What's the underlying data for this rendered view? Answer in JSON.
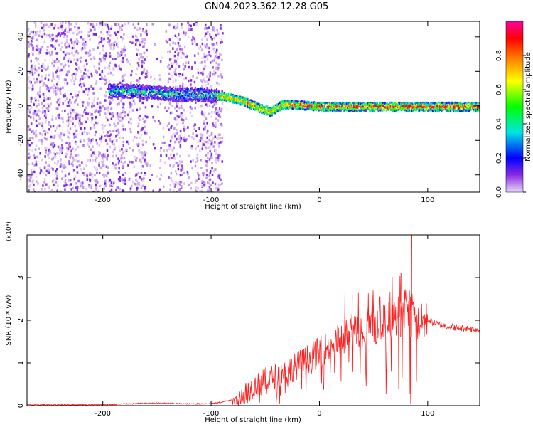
{
  "title": "GN04.2023.362.12.28.G05",
  "chart_data": [
    {
      "type": "heatmap",
      "title": "GN04.2023.362.12.28.G05",
      "xlabel": "Height of straight line (km)",
      "ylabel": "Frequency (Hz)",
      "xlim": [
        -270,
        148
      ],
      "ylim": [
        -50,
        49
      ],
      "xticks": [
        -200,
        -100,
        0,
        100
      ],
      "xtick_labels": [
        "-200",
        "-100",
        "0",
        "100"
      ],
      "yticks": [
        -40,
        -20,
        0,
        20,
        40
      ],
      "ytick_labels": [
        "-40",
        "-20",
        "0",
        "20",
        "40"
      ],
      "colorbar": {
        "label": "Normalized spectral amplitude",
        "range": [
          0,
          1
        ],
        "ticks": [
          0.0,
          0.2,
          0.4,
          0.6,
          0.8
        ],
        "tick_labels": [
          "0.0",
          "0.2",
          "0.4",
          "0.6",
          "0.8"
        ],
        "colormap": [
          "#e6d8f7",
          "#8a2be2",
          "#0000ff",
          "#00e5e5",
          "#00ff00",
          "#ffff00",
          "#ff8000",
          "#ff0000",
          "#ff00a0"
        ]
      },
      "ridge": {
        "x": [
          -190,
          -170,
          -150,
          -130,
          -110,
          -90,
          -70,
          -55,
          -45,
          -35,
          -20,
          0,
          20,
          40,
          60,
          80,
          100,
          120,
          148
        ],
        "y": [
          9,
          9,
          8,
          7,
          7,
          6,
          3,
          -1,
          -3,
          1,
          1,
          0,
          0,
          0,
          0,
          0,
          0,
          0,
          0
        ]
      },
      "noise_region": {
        "x": [
          -270,
          -90
        ],
        "y": [
          -50,
          49
        ]
      }
    },
    {
      "type": "line",
      "xlabel": "Height of straight line (km)",
      "ylabel": "SNR (10 * v/v)",
      "y_multiplier": "(x10⁴)",
      "xlim": [
        -270,
        148
      ],
      "ylim": [
        0,
        4
      ],
      "xticks": [
        -200,
        -100,
        0,
        100
      ],
      "xtick_labels": [
        "-200",
        "-100",
        "0",
        "100"
      ],
      "yticks": [
        0,
        1,
        2,
        3
      ],
      "ytick_labels": [
        "0",
        "1",
        "2",
        "3"
      ],
      "grid": false,
      "color": "#ff2020",
      "series": [
        {
          "x": [
            -270,
            -200,
            -180,
            -150,
            -120,
            -100,
            -90,
            -80,
            -70,
            -60,
            -50,
            -40,
            -30,
            -20,
            -10,
            0,
            10,
            20,
            30,
            40,
            50,
            60,
            70,
            80,
            85,
            90,
            100,
            110,
            120,
            130,
            140,
            148
          ],
          "values": [
            0.02,
            0.02,
            0.04,
            0.06,
            0.04,
            0.05,
            0.08,
            0.15,
            0.3,
            0.45,
            0.6,
            0.7,
            0.8,
            0.95,
            1.1,
            1.25,
            1.4,
            1.55,
            1.7,
            1.8,
            1.85,
            1.95,
            2.05,
            2.3,
            2.2,
            1.9,
            2.0,
            1.9,
            1.85,
            1.82,
            1.8,
            1.78
          ]
        }
      ],
      "spikes": [
        {
          "x": 85,
          "y": 4.0
        },
        {
          "x": 84,
          "y": 0.05
        },
        {
          "x": 75,
          "y": 3.1
        },
        {
          "x": 30,
          "y": 2.6
        }
      ]
    }
  ]
}
